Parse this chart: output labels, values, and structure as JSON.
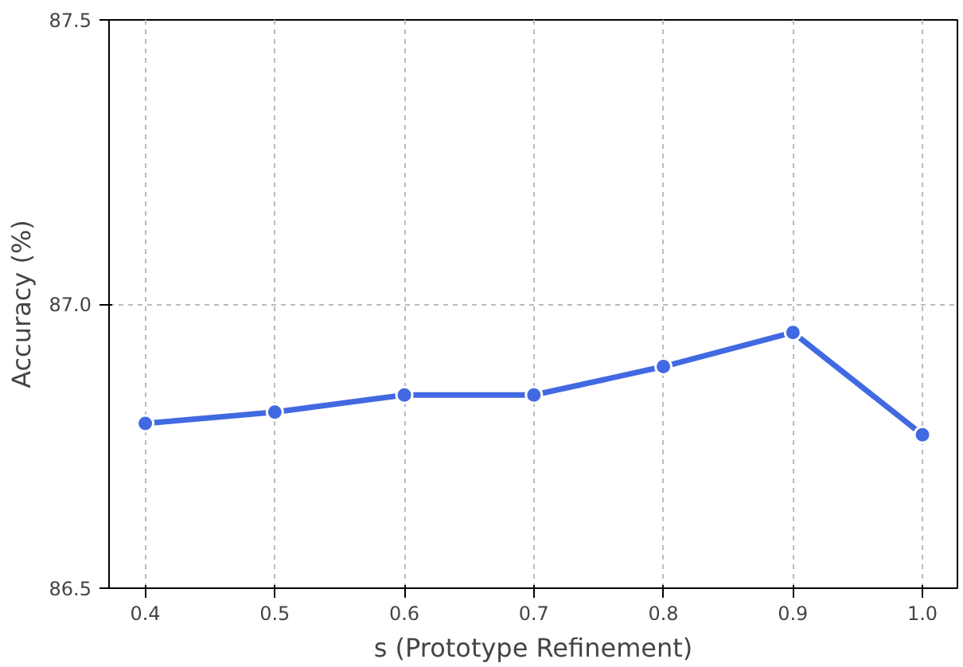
{
  "chart_data": {
    "type": "line",
    "xlabel": "s (Prototype Refinement)",
    "ylabel": "Accuracy (%)",
    "x": [
      0.4,
      0.5,
      0.6,
      0.7,
      0.8,
      0.9,
      1.0
    ],
    "series": [
      {
        "color": "#4169e1",
        "values": [
          86.79,
          86.81,
          86.84,
          86.84,
          86.89,
          86.95,
          86.77
        ]
      }
    ],
    "xlim": [
      0.372,
      1.027
    ],
    "ylim": [
      86.5,
      87.5
    ],
    "xticks": [
      0.4,
      0.5,
      0.6,
      0.7,
      0.8,
      0.9,
      {
        "value": 1.0,
        "label": "1.0"
      }
    ],
    "yticks": [
      86.5,
      {
        "value": 87.0,
        "label": "87.0"
      },
      87.5
    ],
    "grid": true,
    "marker": "circle",
    "line_style": "solid"
  }
}
